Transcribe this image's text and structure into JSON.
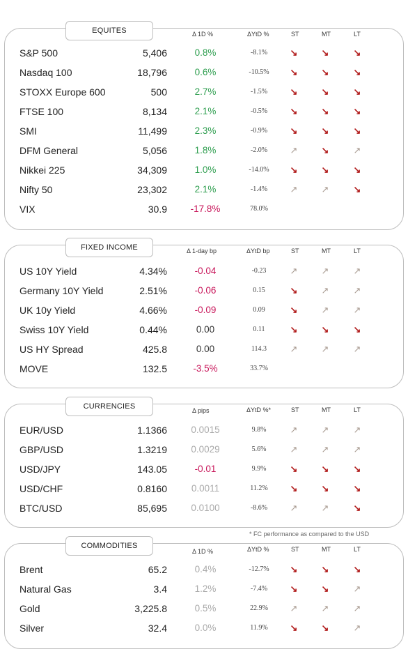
{
  "equities": {
    "title": "EQUITES",
    "h_chg": "Δ 1D %",
    "h_ytd": "ΔYtD %",
    "h_st": "ST",
    "h_mt": "MT",
    "h_lt": "LT",
    "rows": [
      {
        "name": "S&P 500",
        "level": "5,406",
        "chg": "0.8%",
        "ytd": "-8.1%",
        "st": "↘",
        "mt": "↘",
        "lt": "↘"
      },
      {
        "name": "Nasdaq 100",
        "level": "18,796",
        "chg": "0.6%",
        "ytd": "-10.5%",
        "st": "↘",
        "mt": "↘",
        "lt": "↘"
      },
      {
        "name": "STOXX Europe 600",
        "level": "500",
        "chg": "2.7%",
        "ytd": "-1.5%",
        "st": "↘",
        "mt": "↘",
        "lt": "↘"
      },
      {
        "name": "FTSE 100",
        "level": "8,134",
        "chg": "2.1%",
        "ytd": "-0.5%",
        "st": "↘",
        "mt": "↘",
        "lt": "↘"
      },
      {
        "name": "SMI",
        "level": "11,499",
        "chg": "2.3%",
        "ytd": "-0.9%",
        "st": "↘",
        "mt": "↘",
        "lt": "↘"
      },
      {
        "name": "DFM General",
        "level": "5,056",
        "chg": "1.8%",
        "ytd": "-2.0%",
        "st": "↗",
        "mt": "↘",
        "lt": "↗"
      },
      {
        "name": "Nikkei 225",
        "level": "34,309",
        "chg": "1.0%",
        "ytd": "-14.0%",
        "st": "↘",
        "mt": "↘",
        "lt": "↘"
      },
      {
        "name": "Nifty  50",
        "level": "23,302",
        "chg": "2.1%",
        "ytd": "-1.4%",
        "st": "↗",
        "mt": "↗",
        "lt": "↘"
      },
      {
        "name": "VIX",
        "level": "30.9",
        "chg": "-17.8%",
        "ytd": "78.0%",
        "st": "",
        "mt": "",
        "lt": ""
      }
    ]
  },
  "fixed_income": {
    "title": "FIXED INCOME",
    "h_chg": "Δ 1-day bp",
    "h_ytd": "ΔYtD bp",
    "h_st": "ST",
    "h_mt": "MT",
    "h_lt": "LT",
    "rows": [
      {
        "name": "US 10Y Yield",
        "level": "4.34%",
        "chg": "-0.04",
        "ytd": "-0.23",
        "st": "↗",
        "mt": "↗",
        "lt": "↗"
      },
      {
        "name": "Germany 10Y Yield",
        "level": "2.51%",
        "chg": "-0.06",
        "ytd": "0.15",
        "st": "↘",
        "mt": "↗",
        "lt": "↗"
      },
      {
        "name": "UK 10y Yield",
        "level": "4.66%",
        "chg": "-0.09",
        "ytd": "0.09",
        "st": "↘",
        "mt": "↗",
        "lt": "↗"
      },
      {
        "name": "Swiss 10Y Yield",
        "level": "0.44%",
        "chg": "0.00",
        "ytd": "0.11",
        "st": "↘",
        "mt": "↘",
        "lt": "↘"
      },
      {
        "name": "US HY Spread",
        "level": "425.8",
        "chg": "0.00",
        "ytd": "114.3",
        "st": "↗",
        "mt": "↗",
        "lt": "↗"
      },
      {
        "name": "MOVE",
        "level": "132.5",
        "chg": "-3.5%",
        "ytd": "33.7%",
        "st": "",
        "mt": "",
        "lt": ""
      }
    ]
  },
  "currencies": {
    "title": "CURRENCIES",
    "h_chg": "Δ pips",
    "h_ytd": "ΔYtD %*",
    "h_st": "ST",
    "h_mt": "MT",
    "h_lt": "LT",
    "rows": [
      {
        "name": "EUR/USD",
        "level": "1.1366",
        "chg": "0.0015",
        "ytd": "9.8%",
        "st": "↗",
        "mt": "↗",
        "lt": "↗"
      },
      {
        "name": "GBP/USD",
        "level": "1.3219",
        "chg": "0.0029",
        "ytd": "5.6%",
        "st": "↗",
        "mt": "↗",
        "lt": "↗"
      },
      {
        "name": "USD/JPY",
        "level": "143.05",
        "chg": "-0.01",
        "ytd": "9.9%",
        "st": "↘",
        "mt": "↘",
        "lt": "↘"
      },
      {
        "name": "USD/CHF",
        "level": "0.8160",
        "chg": "0.0011",
        "ytd": "11.2%",
        "st": "↘",
        "mt": "↘",
        "lt": "↘"
      },
      {
        "name": "BTC/USD",
        "level": "85,695",
        "chg": "0.0100",
        "ytd": "-8.6%",
        "st": "↗",
        "mt": "↗",
        "lt": "↘"
      }
    ],
    "footnote": "* FC performance as compared to the USD"
  },
  "commodities": {
    "title": "COMMODITIES",
    "h_chg": "Δ 1D %",
    "h_ytd": "ΔYtD %",
    "h_st": "ST",
    "h_mt": "MT",
    "h_lt": "LT",
    "rows": [
      {
        "name": "Brent",
        "level": "65.2",
        "chg": "0.4%",
        "ytd": "-12.7%",
        "st": "↘",
        "mt": "↘",
        "lt": "↘"
      },
      {
        "name": "Natural Gas",
        "level": "3.4",
        "chg": "1.2%",
        "ytd": "-7.4%",
        "st": "↘",
        "mt": "↘",
        "lt": "↗"
      },
      {
        "name": "Gold",
        "level": "3,225.8",
        "chg": "0.5%",
        "ytd": "22.9%",
        "st": "↗",
        "mt": "↗",
        "lt": "↗"
      },
      {
        "name": "Silver",
        "level": "32.4",
        "chg": "0.0%",
        "ytd": "11.9%",
        "st": "↘",
        "mt": "↘",
        "lt": "↗"
      }
    ]
  },
  "colors": {
    "positive": "#2e9e4f",
    "negative": "#c8165a",
    "muted": "#aaaaaa",
    "arrow_down": "#b11b1b",
    "arrow_up": "#a89a90",
    "border": "#bdbdbd"
  }
}
